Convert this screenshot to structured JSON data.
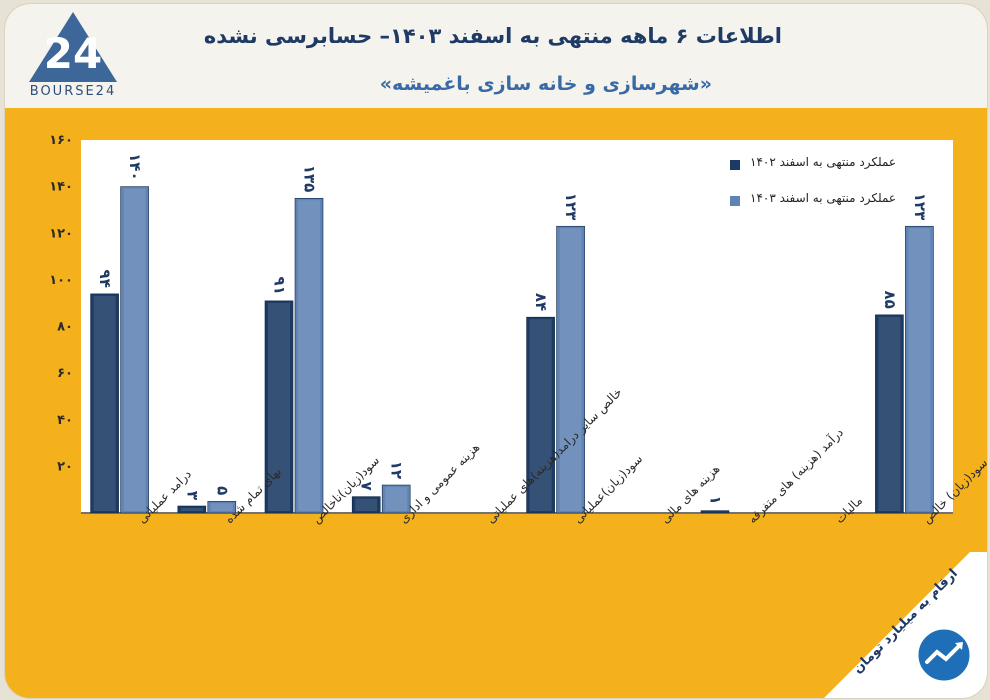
{
  "header": {
    "title": "اطلاعات ۶ ماهه منتهی به اسفند ۱۴۰۳– حسابرسی نشده",
    "subtitle": "«شهرسازی و خانه سازی باغمیشه»",
    "logo_text": "BOURSE24"
  },
  "note": "ارقام به میلیارد تومان",
  "colors": {
    "series_1402": "#1b3a64",
    "series_1403": "#5f83b4",
    "panel": "#f5b11c",
    "plot_bg": "#ffffff",
    "title": "#1f3a64"
  },
  "chart_data": {
    "type": "bar",
    "categories": [
      "درامد عملیاتی",
      "بهای تمام شده",
      "سود(زیان)ناخالص",
      "هزینه عمومی و اداری",
      "خالص سایر درامد(هزینه)های عملیاتی",
      "سود(زیان)عملیاتی",
      "هزینه های مالی",
      "درآمد (هزینه) های متفرقه",
      "مالیات",
      "سود(زیان) خالص"
    ],
    "series": [
      {
        "name": "عملکرد منتهی به اسفند ۱۴۰۲",
        "values": [
          94,
          3,
          91,
          7,
          0,
          84,
          0,
          1,
          0,
          85
        ],
        "labels": [
          "۹۴",
          "۳",
          "۹۱",
          "۷",
          "",
          "۸۴",
          "",
          "۱",
          "",
          "۸۵"
        ]
      },
      {
        "name": "عملکرد منتهی به اسفند ۱۴۰۳",
        "values": [
          140,
          5,
          135,
          12,
          0,
          123,
          0,
          0,
          0,
          123
        ],
        "labels": [
          "۱۴۰",
          "۵",
          "۱۳۵",
          "۱۲",
          "",
          "۱۲۳",
          "",
          "",
          "",
          "۱۲۳"
        ]
      }
    ],
    "y_ticks": [
      "۲۰",
      "۴۰",
      "۶۰",
      "۸۰",
      "۱۰۰",
      "۱۲۰",
      "۱۴۰",
      "۱۶۰"
    ],
    "y_tick_values": [
      20,
      40,
      60,
      80,
      100,
      120,
      140,
      160
    ],
    "ylim": [
      0,
      160
    ],
    "grid": false,
    "legend_position": "top-right"
  }
}
